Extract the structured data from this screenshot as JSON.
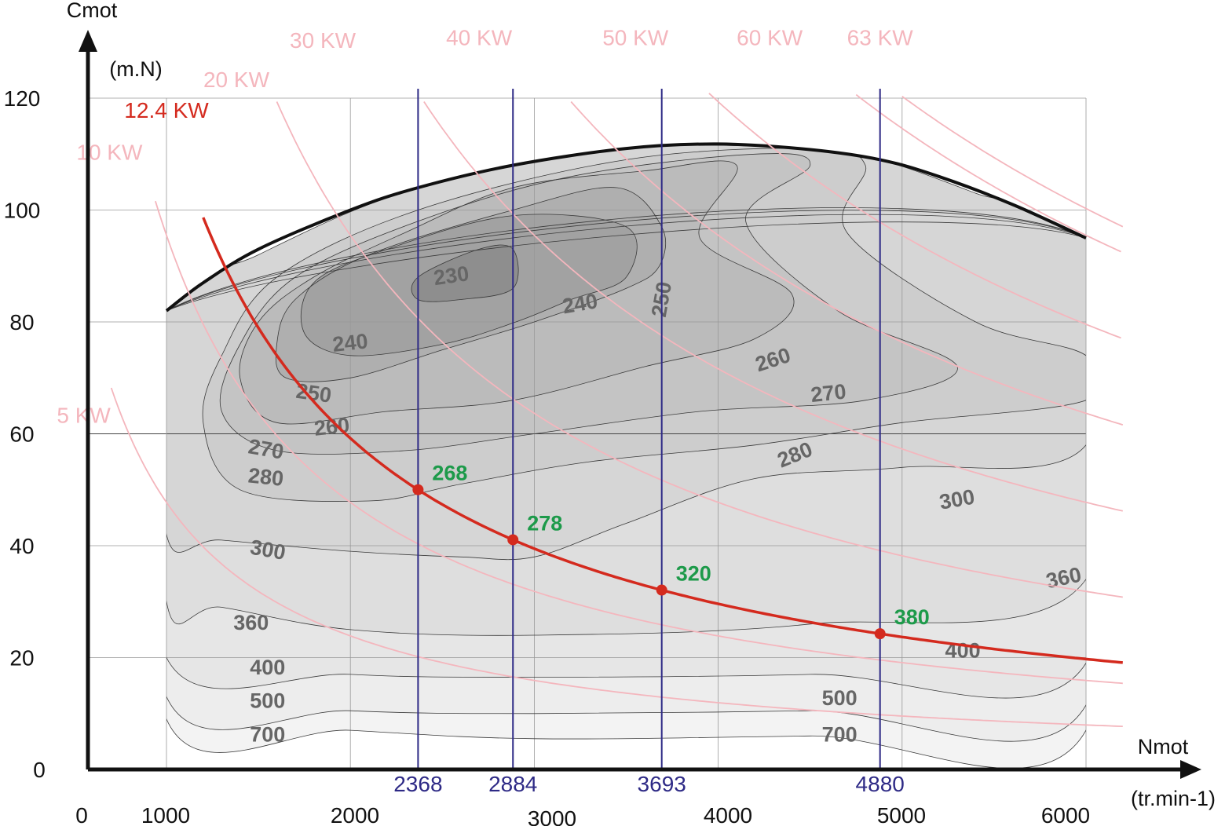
{
  "chart_data": {
    "type": "contour",
    "y_axis": {
      "label": "Cmot",
      "unit": "(m.N)",
      "ticks": [
        0,
        20,
        40,
        60,
        80,
        100,
        120
      ],
      "range": [
        0,
        120
      ]
    },
    "x_axis": {
      "label": "Nmot",
      "unit": "(tr.min-1)",
      "ticks": [
        0,
        1000,
        2000,
        3000,
        4000,
        5000,
        6000
      ],
      "range": [
        500,
        6000
      ]
    },
    "grid": true,
    "full_load_curve": [
      [
        1000,
        82
      ],
      [
        1200,
        87
      ],
      [
        1500,
        93
      ],
      [
        2000,
        100
      ],
      [
        2368,
        104
      ],
      [
        2884,
        108
      ],
      [
        3500,
        111
      ],
      [
        4000,
        111.8
      ],
      [
        4500,
        110.8
      ],
      [
        4880,
        109
      ],
      [
        5200,
        106
      ],
      [
        5600,
        101
      ],
      [
        6000,
        95
      ]
    ],
    "contours": [
      {
        "label": "230",
        "shade": "#8e8e8e",
        "points": [
          [
            2368,
            84
          ],
          [
            2368,
            88
          ],
          [
            2700,
            93
          ],
          [
            2884,
            93
          ],
          [
            2884,
            86
          ],
          [
            2600,
            84
          ]
        ]
      },
      {
        "label": "240",
        "shade": "#a2a2a2",
        "points": [
          [
            1750,
            78
          ],
          [
            1800,
            87
          ],
          [
            2200,
            93
          ],
          [
            2884,
            99
          ],
          [
            3500,
            97
          ],
          [
            3500,
            88
          ],
          [
            3200,
            84
          ],
          [
            2900,
            80
          ],
          [
            2500,
            76
          ],
          [
            2000,
            74
          ]
        ]
      },
      {
        "label": "250",
        "shade": "#afafaf",
        "points": [
          [
            1600,
            76
          ],
          [
            1700,
            84
          ],
          [
            2100,
            92
          ],
          [
            2884,
            100
          ],
          [
            3450,
            104
          ],
          [
            3693,
            97
          ],
          [
            3680,
            90
          ],
          [
            3500,
            86
          ],
          [
            3000,
            80
          ],
          [
            2500,
            75
          ],
          [
            2000,
            70
          ],
          [
            1650,
            70
          ]
        ]
      },
      {
        "label": "260",
        "shade": "#bbbbbb",
        "points": [
          [
            1400,
            70
          ],
          [
            1500,
            80
          ],
          [
            1800,
            88
          ],
          [
            2300,
            96
          ],
          [
            2884,
            104
          ],
          [
            3600,
            107
          ],
          [
            4100,
            108
          ],
          [
            3900,
            95
          ],
          [
            4400,
            85
          ],
          [
            4200,
            77
          ],
          [
            3600,
            72
          ],
          [
            2884,
            66
          ],
          [
            2200,
            64
          ],
          [
            1600,
            62
          ]
        ]
      },
      {
        "label": "270",
        "shade": "#c4c4c4",
        "points": [
          [
            1300,
            64
          ],
          [
            1400,
            76
          ],
          [
            1700,
            88
          ],
          [
            2368,
            98
          ],
          [
            3200,
            106
          ],
          [
            4200,
            110
          ],
          [
            4500,
            108
          ],
          [
            4150,
            98
          ],
          [
            4650,
            82
          ],
          [
            5300,
            72
          ],
          [
            4800,
            66
          ],
          [
            3900,
            64
          ],
          [
            3000,
            60
          ],
          [
            2300,
            57
          ],
          [
            1600,
            57
          ]
        ]
      },
      {
        "label": "280",
        "shade": "#cdcdcd",
        "points": [
          [
            1200,
            62
          ],
          [
            1300,
            74
          ],
          [
            1600,
            88
          ],
          [
            2368,
            100
          ],
          [
            3500,
            109
          ],
          [
            4500,
            111
          ],
          [
            4800,
            108
          ],
          [
            4700,
            96
          ],
          [
            5400,
            80
          ],
          [
            6000,
            74
          ],
          [
            6000,
            66
          ],
          [
            5000,
            62
          ],
          [
            4200,
            58
          ],
          [
            3300,
            55
          ],
          [
            2600,
            51
          ],
          [
            2100,
            48
          ],
          [
            1400,
            50
          ]
        ]
      },
      {
        "label": "300",
        "shade": "#d6d6d6",
        "points": [
          [
            1000,
            82
          ],
          [
            1500,
            92
          ],
          [
            2368,
            104
          ],
          [
            3500,
            111
          ],
          [
            4500,
            111
          ],
          [
            4880,
            109
          ],
          [
            5400,
            103
          ],
          [
            6000,
            95
          ],
          [
            6000,
            58
          ],
          [
            5000,
            54
          ],
          [
            4200,
            52
          ],
          [
            3500,
            44
          ],
          [
            3000,
            38
          ],
          [
            2600,
            38
          ],
          [
            2000,
            39
          ],
          [
            1300,
            41
          ],
          [
            1000,
            42
          ]
        ]
      },
      {
        "label": "360",
        "shade": "#dedede",
        "points": [
          [
            1000,
            82
          ],
          [
            1000,
            30
          ],
          [
            1300,
            29
          ],
          [
            2000,
            25
          ],
          [
            3000,
            24
          ],
          [
            4500,
            26
          ],
          [
            6000,
            34
          ],
          [
            6000,
            95
          ]
        ]
      },
      {
        "label": "400",
        "shade": "#e6e6e6",
        "points": [
          [
            1000,
            82
          ],
          [
            1000,
            20
          ],
          [
            2000,
            17
          ],
          [
            3000,
            16.5
          ],
          [
            4500,
            17
          ],
          [
            6000,
            19
          ],
          [
            6000,
            95
          ]
        ]
      },
      {
        "label": "500",
        "shade": "#ededed",
        "points": [
          [
            1000,
            82
          ],
          [
            1000,
            13
          ],
          [
            2000,
            10.5
          ],
          [
            3000,
            10
          ],
          [
            4500,
            10.5
          ],
          [
            6000,
            11.5
          ],
          [
            6000,
            95
          ]
        ]
      },
      {
        "label": "700",
        "shade": "#f3f3f3",
        "points": [
          [
            1000,
            82
          ],
          [
            1000,
            9
          ],
          [
            2000,
            7
          ],
          [
            3000,
            5.5
          ],
          [
            4500,
            6
          ],
          [
            6000,
            7
          ],
          [
            6000,
            95
          ]
        ]
      }
    ],
    "contour_labels": [
      {
        "text": "230",
        "x": 2550,
        "y": 88,
        "rot": -8
      },
      {
        "text": "240",
        "x": 3250,
        "y": 83,
        "rot": -10
      },
      {
        "text": "240",
        "x": 2000,
        "y": 76,
        "rot": -6
      },
      {
        "text": "250",
        "x": 3700,
        "y": 84,
        "rot": -80
      },
      {
        "text": "250",
        "x": 1800,
        "y": 67,
        "rot": 8
      },
      {
        "text": "260",
        "x": 4300,
        "y": 73,
        "rot": -18
      },
      {
        "text": "260",
        "x": 1900,
        "y": 61,
        "rot": -6
      },
      {
        "text": "270",
        "x": 4600,
        "y": 67,
        "rot": -6
      },
      {
        "text": "270",
        "x": 1540,
        "y": 57,
        "rot": 10
      },
      {
        "text": "280",
        "x": 4420,
        "y": 56,
        "rot": -22
      },
      {
        "text": "280",
        "x": 1540,
        "y": 52,
        "rot": 6
      },
      {
        "text": "300",
        "x": 5300,
        "y": 48,
        "rot": -10
      },
      {
        "text": "300",
        "x": 1550,
        "y": 39,
        "rot": 10
      },
      {
        "text": "360",
        "x": 5880,
        "y": 34,
        "rot": -12
      },
      {
        "text": "360",
        "x": 1460,
        "y": 26,
        "rot": 0
      },
      {
        "text": "400",
        "x": 5330,
        "y": 21,
        "rot": 0
      },
      {
        "text": "400",
        "x": 1550,
        "y": 18,
        "rot": 0
      },
      {
        "text": "500",
        "x": 4660,
        "y": 12.5,
        "rot": 0
      },
      {
        "text": "500",
        "x": 1550,
        "y": 12,
        "rot": 0
      },
      {
        "text": "700",
        "x": 4660,
        "y": 6,
        "rot": 0
      },
      {
        "text": "700",
        "x": 1550,
        "y": 6,
        "rot": 0
      }
    ],
    "power_curves": [
      {
        "name": "5 KW",
        "kw": 5,
        "label_x": 550,
        "label_y": 62,
        "start_rpm": 700,
        "end_rpm": 6200
      },
      {
        "name": "10 KW",
        "kw": 10,
        "label_x": 690,
        "label_y": 109,
        "start_rpm": 940,
        "end_rpm": 6200
      },
      {
        "name": "20 KW",
        "kw": 20,
        "label_x": 1380,
        "label_y": 122,
        "start_rpm": 1600,
        "end_rpm": 6200
      },
      {
        "name": "30 KW",
        "kw": 30,
        "label_x": 1850,
        "label_y": 129,
        "start_rpm": 2400,
        "end_rpm": 6200
      },
      {
        "name": "40 KW",
        "kw": 40,
        "label_x": 2700,
        "label_y": 129.5,
        "start_rpm": 3200,
        "end_rpm": 6200
      },
      {
        "name": "50 KW",
        "kw": 50,
        "label_x": 3550,
        "label_y": 129.5,
        "start_rpm": 3950,
        "end_rpm": 6200
      },
      {
        "name": "60 KW",
        "kw": 60,
        "label_x": 4280,
        "label_y": 129.5,
        "start_rpm": 4750,
        "end_rpm": 6200
      },
      {
        "name": "63 KW",
        "kw": 63,
        "label_x": 4880,
        "label_y": 129.5,
        "start_rpm": 5000,
        "end_rpm": 6200
      }
    ],
    "main_power_curve": {
      "name": "12.4 KW",
      "kw": 12.4,
      "label_x": 1000,
      "label_y": 116.5,
      "start_rpm": 1200,
      "end_rpm": 6200
    },
    "operating_points": [
      {
        "rpm": 2368,
        "label": "2368",
        "value": "268"
      },
      {
        "rpm": 2884,
        "label": "2884",
        "value": "278"
      },
      {
        "rpm": 3693,
        "label": "3693",
        "value": "320"
      },
      {
        "rpm": 4880,
        "label": "4880",
        "value": "380"
      }
    ],
    "colors": {
      "power_curve": "#f4b6bd",
      "main_curve": "#d42a1e",
      "rpm_lines": "#2e2a86",
      "point_labels": "#1d9a4a",
      "contour_labels": "#666666"
    }
  }
}
